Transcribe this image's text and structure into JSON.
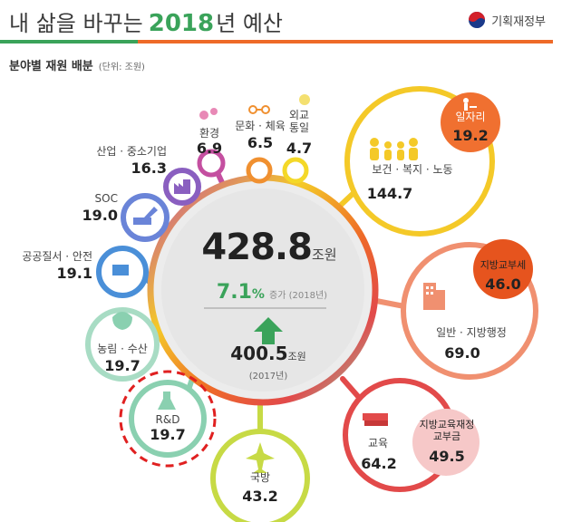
{
  "header": {
    "title_prefix": "내 삶을 바꾸는",
    "title_year": "2018",
    "title_suffix": "년 예산",
    "ministry": "기획재정부"
  },
  "subtitle": {
    "text": "분야별 재원 배분",
    "unit": "(단위: 조원)"
  },
  "center": {
    "total": "428.8",
    "total_unit": "조원",
    "rate": "7.1",
    "rate_pct": "%",
    "rate_note": "증가 (2018년)",
    "prev": "400.5",
    "prev_unit": "조원",
    "prev_year": "(2017년)"
  },
  "sectors": {
    "welfare": {
      "label": "보건 · 복지 · 노동",
      "value": "144.7",
      "badge_label": "일자리",
      "badge_value": "19.2"
    },
    "general": {
      "label": "일반 · 지방행정",
      "value": "69.0",
      "badge_label": "지방교부세",
      "badge_value": "46.0"
    },
    "education": {
      "label": "교육",
      "value": "64.2",
      "badge_label": "지방교육재정\n교부금",
      "badge_value": "49.5"
    },
    "defense": {
      "label": "국방",
      "value": "43.2"
    },
    "rnd": {
      "label": "R&D",
      "value": "19.7"
    },
    "agri": {
      "label": "농림 · 수산",
      "value": "19.7"
    },
    "safety": {
      "label": "공공질서 · 안전",
      "value": "19.1"
    },
    "soc": {
      "label": "SOC",
      "value": "19.0"
    },
    "industry": {
      "label": "산업 · 중소기업",
      "value": "16.3"
    },
    "environment": {
      "label": "환경",
      "value": "6.9"
    },
    "culture": {
      "label": "문화 · 체육",
      "value": "6.5"
    },
    "diplomacy": {
      "label": "외교\n통일",
      "value": "4.7"
    }
  },
  "colors": {
    "green": "#3aa35a",
    "orange": "#ee6a28",
    "yellow": "#f4c928",
    "salmon": "#f09070",
    "red": "#e24a4a",
    "lime": "#c7da45",
    "teal": "#8ad0b0",
    "blue": "#4a8fd8",
    "purple": "#8a5fc0",
    "magenta": "#c44fa0",
    "pink": "#e889b6",
    "highlight": "#e02020"
  }
}
